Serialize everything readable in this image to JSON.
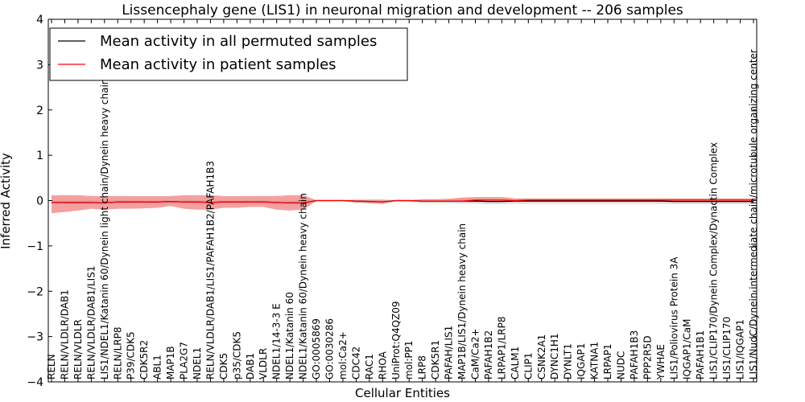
{
  "chart_data": {
    "type": "line",
    "title": "Lissencephaly gene (LIS1) in neuronal migration and development -- 206 samples",
    "xlabel": "Cellular Entities",
    "ylabel": "Inferred Activity",
    "ylim": [
      -4,
      4
    ],
    "yticks": [
      -4,
      -3,
      -2,
      -1,
      0,
      1,
      2,
      3,
      4
    ],
    "ytick_labels": [
      "−4",
      "−3",
      "−2",
      "−1",
      "0",
      "1",
      "2",
      "3",
      "4"
    ],
    "grid": false,
    "legend_position": "upper-left",
    "categories": [
      "RELN",
      "RELN/VLDLR/DAB1",
      "RELN/VLDLR",
      "RELN/VLDLR/DAB1/LIS1",
      "LIS1/NDEL1/Katanin 60/Dynein light chain/Dynein heavy chain",
      "RELN/LRP8",
      "P39/CDK5",
      "CDK5R2",
      "ABL1",
      "MAP1B",
      "PLA2G7",
      "NDEL1",
      "RELN/VLDLR/DAB1/LIS1/PAFAH1B2/PAFAH1B3",
      "CDK5",
      "p35/CDK5",
      "DAB1",
      "VLDLR",
      "NDEL1/14-3-3 E",
      "NDEL1/Katanin 60",
      "NDEL1/Katanin 60/Dynein heavy chain",
      "GO:0005869",
      "GO:0030286",
      "mol:Ca2+",
      "CDC42",
      "RAC1",
      "RHOA",
      "UniProt:Q4QZ09",
      "mol:PP1",
      "LRP8",
      "CDK5R1",
      "PAFAH/LIS1",
      "MAP1B/LIS1/Dynein heavy chain",
      "CaM/Ca2+",
      "PAFAH1B2",
      "LRPAP1/LRP8",
      "CALM1",
      "CLIP1",
      "CSNK2A1",
      "DYNC1H1",
      "DYNLT1",
      "IQGAP1",
      "KATNA1",
      "LRPAP1",
      "NUDC",
      "PAFAH1B3",
      "PPP2R5D",
      "YWHAE",
      "LIS1/Poliovirus Protein 3A",
      "IQGAP1/CaM",
      "PAFAH1B1",
      "LIS1/CLIP170/Dynein Complex/Dynactin Complex",
      "LIS1/CLIP170",
      "LIS1/IQGAP1",
      "LIS1/NudC/Dynein intermediate chain/microtubule organizing center"
    ],
    "series": [
      {
        "name": "Mean activity in all permuted samples",
        "color": "#000000",
        "band_color": "#c8c8c8",
        "values": [
          -0.04,
          -0.04,
          -0.04,
          -0.04,
          -0.05,
          -0.03,
          -0.03,
          -0.03,
          -0.03,
          -0.02,
          -0.03,
          -0.03,
          -0.04,
          -0.03,
          -0.03,
          -0.03,
          -0.03,
          -0.04,
          -0.05,
          -0.05,
          0.0,
          0.0,
          0.0,
          -0.01,
          -0.02,
          -0.03,
          0.0,
          0.0,
          -0.01,
          -0.01,
          -0.01,
          -0.01,
          -0.01,
          -0.02,
          -0.02,
          -0.01,
          -0.01,
          -0.01,
          -0.01,
          -0.01,
          -0.01,
          -0.01,
          -0.01,
          -0.01,
          -0.01,
          -0.01,
          -0.01,
          -0.02,
          -0.02,
          -0.02,
          -0.02,
          -0.02,
          -0.02,
          -0.02
        ],
        "band_low": [
          -0.07,
          -0.08,
          -0.08,
          -0.08,
          -0.1,
          -0.08,
          -0.08,
          -0.08,
          -0.08,
          -0.07,
          -0.08,
          -0.08,
          -0.09,
          -0.08,
          -0.08,
          -0.08,
          -0.08,
          -0.09,
          -0.1,
          -0.1,
          -0.01,
          -0.01,
          -0.01,
          -0.06,
          -0.07,
          -0.09,
          -0.02,
          -0.02,
          -0.06,
          -0.06,
          -0.06,
          -0.07,
          -0.07,
          -0.08,
          -0.08,
          -0.07,
          -0.07,
          -0.07,
          -0.07,
          -0.07,
          -0.07,
          -0.07,
          -0.07,
          -0.07,
          -0.07,
          -0.07,
          -0.07,
          -0.08,
          -0.08,
          -0.08,
          -0.08,
          -0.08,
          -0.08,
          -0.08
        ],
        "band_high": [
          0.01,
          0.01,
          0.01,
          0.01,
          0.0,
          0.01,
          0.01,
          0.01,
          0.01,
          0.01,
          0.01,
          0.01,
          0.0,
          0.01,
          0.01,
          0.01,
          0.01,
          0.0,
          0.0,
          0.0,
          0.01,
          0.01,
          0.01,
          0.02,
          0.02,
          0.02,
          0.01,
          0.01,
          0.03,
          0.03,
          0.03,
          0.04,
          0.04,
          0.04,
          0.04,
          0.04,
          0.04,
          0.04,
          0.04,
          0.04,
          0.04,
          0.04,
          0.04,
          0.04,
          0.04,
          0.04,
          0.04,
          0.04,
          0.04,
          0.04,
          0.04,
          0.04,
          0.04,
          0.04
        ]
      },
      {
        "name": "Mean activity in patient samples",
        "color": "#ff0000",
        "band_color": "#f08080",
        "values": [
          -0.04,
          -0.04,
          -0.04,
          -0.04,
          -0.05,
          -0.03,
          -0.03,
          -0.03,
          -0.03,
          -0.02,
          -0.03,
          -0.03,
          -0.04,
          -0.03,
          -0.03,
          -0.03,
          -0.03,
          -0.04,
          -0.05,
          -0.05,
          0.0,
          0.0,
          0.0,
          -0.01,
          -0.02,
          -0.03,
          0.0,
          0.0,
          -0.01,
          -0.01,
          -0.01,
          -0.01,
          0.01,
          0.01,
          0.01,
          0.0,
          0.01,
          0.01,
          0.01,
          0.01,
          0.01,
          0.01,
          0.01,
          0.01,
          0.01,
          0.01,
          0.01,
          0.01,
          0.01,
          0.01,
          0.01,
          0.01,
          0.01,
          0.01
        ],
        "band_low": [
          -0.28,
          -0.25,
          -0.22,
          -0.18,
          -0.2,
          -0.18,
          -0.18,
          -0.17,
          -0.16,
          -0.12,
          -0.18,
          -0.2,
          -0.2,
          -0.16,
          -0.16,
          -0.14,
          -0.14,
          -0.2,
          -0.22,
          -0.2,
          -0.01,
          -0.01,
          -0.01,
          -0.04,
          -0.05,
          -0.06,
          -0.01,
          -0.01,
          -0.03,
          -0.03,
          -0.03,
          -0.03,
          -0.03,
          -0.02,
          -0.02,
          -0.02,
          -0.02,
          -0.02,
          -0.02,
          -0.02,
          -0.02,
          -0.02,
          -0.02,
          -0.02,
          -0.02,
          -0.02,
          -0.02,
          -0.02,
          -0.02,
          -0.02,
          -0.02,
          -0.02,
          -0.02,
          -0.02
        ],
        "band_high": [
          0.12,
          0.12,
          0.12,
          0.1,
          0.1,
          0.1,
          0.1,
          0.1,
          0.1,
          0.1,
          0.12,
          0.12,
          0.12,
          0.1,
          0.1,
          0.1,
          0.1,
          0.1,
          0.12,
          0.12,
          0.01,
          0.01,
          0.01,
          0.02,
          0.02,
          0.02,
          0.01,
          0.01,
          0.03,
          0.03,
          0.04,
          0.07,
          0.08,
          0.08,
          0.08,
          0.05,
          0.05,
          0.05,
          0.05,
          0.05,
          0.05,
          0.05,
          0.05,
          0.05,
          0.05,
          0.05,
          0.05,
          0.05,
          0.05,
          0.05,
          0.05,
          0.05,
          0.05,
          0.05
        ]
      }
    ]
  }
}
